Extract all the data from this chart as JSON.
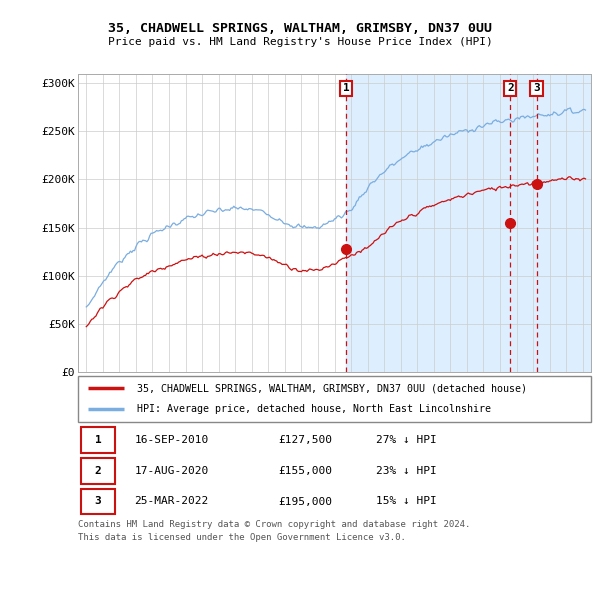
{
  "title1": "35, CHADWELL SPRINGS, WALTHAM, GRIMSBY, DN37 0UU",
  "title2": "Price paid vs. HM Land Registry's House Price Index (HPI)",
  "ylim": [
    0,
    310000
  ],
  "yticks": [
    0,
    50000,
    100000,
    150000,
    200000,
    250000,
    300000
  ],
  "ytick_labels": [
    "£0",
    "£50K",
    "£100K",
    "£150K",
    "£200K",
    "£250K",
    "£300K"
  ],
  "x_start_year": 1995,
  "x_end_year": 2025,
  "sale_prices": [
    127500,
    155000,
    195000
  ],
  "legend_line1": "35, CHADWELL SPRINGS, WALTHAM, GRIMSBY, DN37 0UU (detached house)",
  "legend_line2": "HPI: Average price, detached house, North East Lincolnshire",
  "table_rows": [
    [
      "1",
      "16-SEP-2010",
      "£127,500",
      "27% ↓ HPI"
    ],
    [
      "2",
      "17-AUG-2020",
      "£155,000",
      "23% ↓ HPI"
    ],
    [
      "3",
      "25-MAR-2022",
      "£195,000",
      "15% ↓ HPI"
    ]
  ],
  "footnote1": "Contains HM Land Registry data © Crown copyright and database right 2024.",
  "footnote2": "This data is licensed under the Open Government Licence v3.0.",
  "hpi_color": "#7aade0",
  "sale_color": "#cc1111",
  "vline_color": "#cc1111",
  "grid_color": "#cccccc",
  "shade_color": "#ddeeff",
  "bg_color": "#ffffff"
}
